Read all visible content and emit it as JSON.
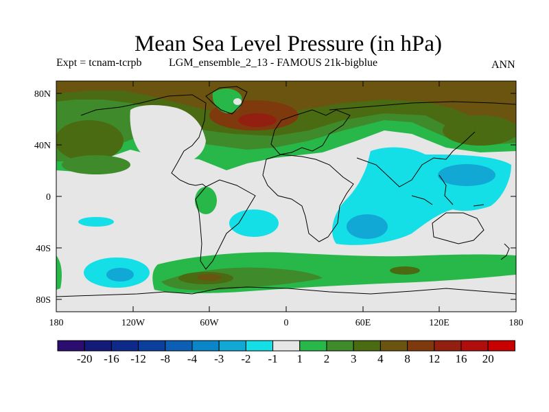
{
  "title": "Mean Sea Level Pressure (in hPa)",
  "subtitle_left": "Expt = tcnam-tcrpb",
  "subtitle_center": "LGM_ensemble_2_13 - FAMOUS 21k-bigblue",
  "subtitle_right": "ANN",
  "axes": {
    "x_ticks": [
      "180",
      "120W",
      "60W",
      "0",
      "60E",
      "120E",
      "180"
    ],
    "y_ticks": [
      "80N",
      "40N",
      "0",
      "40S",
      "80S"
    ]
  },
  "colorbar": {
    "labels": [
      "-20",
      "-16",
      "-12",
      "-8",
      "-4",
      "-3",
      "-2",
      "-1",
      "1",
      "2",
      "3",
      "4",
      "8",
      "12",
      "16",
      "20"
    ],
    "colors": [
      "#2a0d6e",
      "#141a78",
      "#0d2a8a",
      "#0a3f9e",
      "#0c5fb4",
      "#0a86c8",
      "#12a8d6",
      "#14dfe6",
      "#e6e6e6",
      "#28b84a",
      "#3f8a2a",
      "#4b6b12",
      "#6b5410",
      "#7e3a0c",
      "#921f10",
      "#b00d0d",
      "#c80000"
    ]
  },
  "colors": {
    "neutral": "#e6e6e6",
    "pos_1": "#28b84a",
    "pos_2": "#3f8a2a",
    "pos_3": "#4b6b12",
    "pos_4": "#6b5410",
    "pos_5": "#7e3a0c",
    "pos_6": "#921f10",
    "neg_1": "#14dfe6",
    "neg_2": "#12a8d6"
  }
}
